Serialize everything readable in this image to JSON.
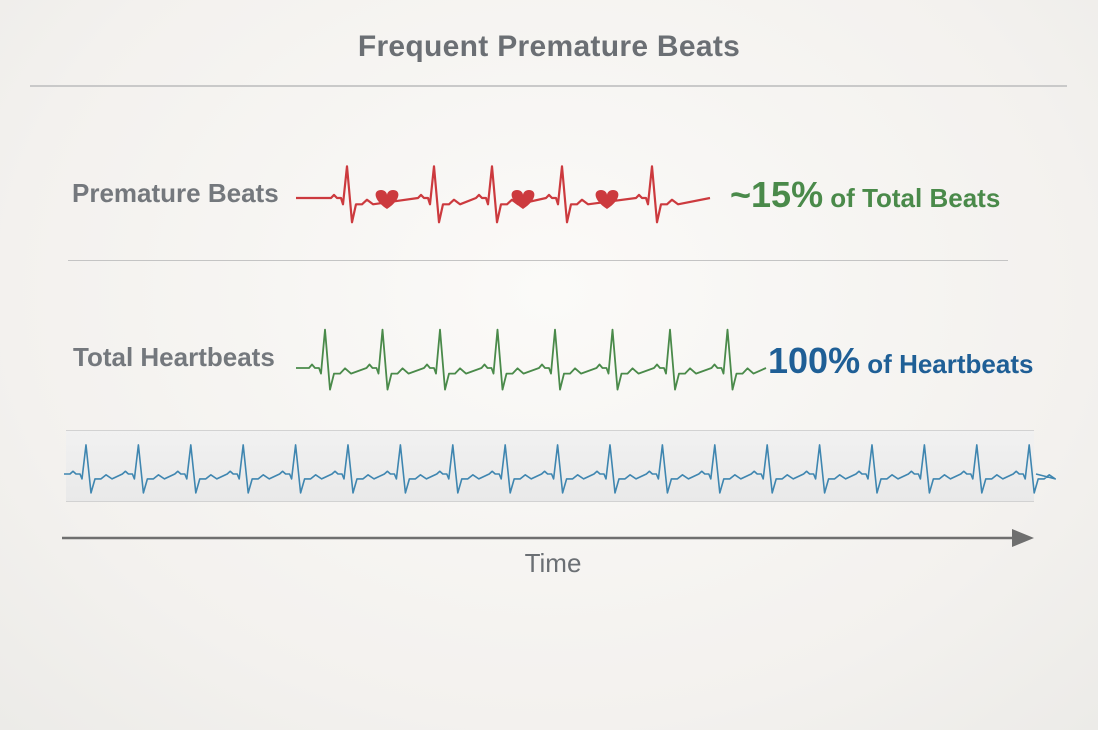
{
  "title": "Frequent Premature Beats",
  "rows": {
    "premature": {
      "label": "Premature Beats",
      "stat_value": "~15%",
      "stat_text": " of Total Beats",
      "color": "#cc3a3e",
      "stat_color": "#4a8a4a"
    },
    "total": {
      "label": "Total Heartbeats",
      "stat_value": "100%",
      "stat_text": " of Heartbeats",
      "color": "#4a8a4a",
      "stat_color": "#1f5f96"
    }
  },
  "strip_color": "#3f86b0",
  "axis": {
    "label": "Time",
    "color": "#6f6f6f"
  },
  "icons": {
    "heart": "heart-icon",
    "arrow": "arrow-right-icon"
  }
}
